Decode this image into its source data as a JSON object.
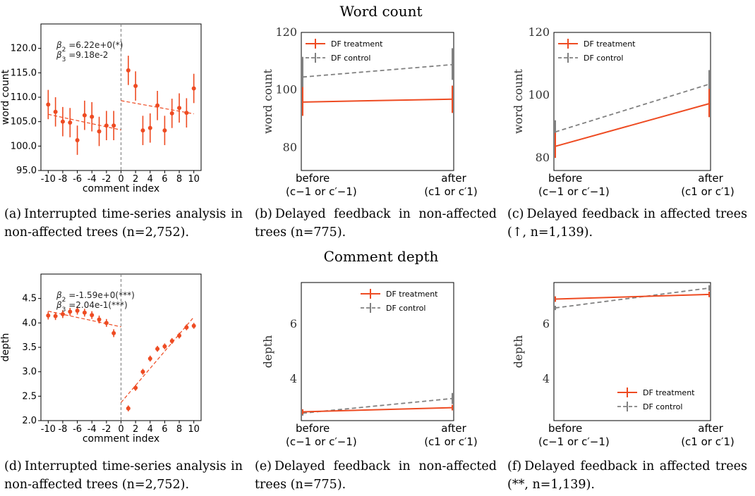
{
  "row_titles": {
    "top": "Word count",
    "bottom": "Comment depth"
  },
  "colors": {
    "treatment": "#ee4b22",
    "control": "#808080",
    "cutoff": "#888888"
  },
  "captions": [
    {
      "label": "(a)",
      "text": "Interrupted time-series analysis in non-affected trees (n=2,752)."
    },
    {
      "label": "(b)",
      "text": "Delayed feedback in non-affected trees (n=775)."
    },
    {
      "label": "(c)",
      "text": "Delayed feedback in affected trees (↑, n=1,139)."
    },
    {
      "label": "(d)",
      "text": "Interrupted time-series analysis in non-affected trees (n=2,752)."
    },
    {
      "label": "(e)",
      "text": "Delayed feedback in non-affected trees (n=775)."
    },
    {
      "label": "(f)",
      "text": "Delayed feedback in affected trees (**, n=1,139)."
    }
  ],
  "chart_data": [
    {
      "id": "a",
      "type": "scatter",
      "xlabel": "comment index",
      "ylabel": "word count",
      "xlim": [
        -11,
        11
      ],
      "ylim": [
        95,
        125
      ],
      "xticks": [
        -10,
        -8,
        -6,
        -4,
        -2,
        0,
        2,
        4,
        6,
        8,
        10
      ],
      "xtick_labels": [
        "-10",
        "-8",
        "-6",
        "-4",
        "-2",
        "0",
        "2",
        "4",
        "6",
        "8",
        "10"
      ],
      "yticks": [
        95,
        100,
        105,
        110,
        115,
        120
      ],
      "ytick_labels": [
        "95.0",
        "100.0",
        "105.0",
        "110.0",
        "115.0",
        "120.0"
      ],
      "annotations": [
        "β2 =6.22e+0(*)",
        "β3 =9.18e-2"
      ],
      "points": [
        {
          "x": -10,
          "y": 108.5,
          "lo": 105.5,
          "hi": 111.5
        },
        {
          "x": -9,
          "y": 107.0,
          "lo": 104.0,
          "hi": 110.0
        },
        {
          "x": -8,
          "y": 105.0,
          "lo": 102.0,
          "hi": 108.0
        },
        {
          "x": -7,
          "y": 104.8,
          "lo": 101.8,
          "hi": 107.8
        },
        {
          "x": -6,
          "y": 101.2,
          "lo": 98.2,
          "hi": 104.2
        },
        {
          "x": -5,
          "y": 106.3,
          "lo": 103.3,
          "hi": 109.3
        },
        {
          "x": -4,
          "y": 106.0,
          "lo": 103.0,
          "hi": 109.0
        },
        {
          "x": -3,
          "y": 103.0,
          "lo": 100.0,
          "hi": 106.0
        },
        {
          "x": -2,
          "y": 104.2,
          "lo": 101.2,
          "hi": 107.2
        },
        {
          "x": -1,
          "y": 104.2,
          "lo": 101.2,
          "hi": 107.2
        },
        {
          "x": 1,
          "y": 115.5,
          "lo": 112.5,
          "hi": 118.5
        },
        {
          "x": 2,
          "y": 112.3,
          "lo": 109.3,
          "hi": 115.3
        },
        {
          "x": 3,
          "y": 103.2,
          "lo": 100.2,
          "hi": 106.2
        },
        {
          "x": 4,
          "y": 103.7,
          "lo": 100.7,
          "hi": 106.7
        },
        {
          "x": 5,
          "y": 108.3,
          "lo": 105.3,
          "hi": 111.3
        },
        {
          "x": 6,
          "y": 103.2,
          "lo": 100.2,
          "hi": 106.2
        },
        {
          "x": 7,
          "y": 106.7,
          "lo": 103.7,
          "hi": 109.7
        },
        {
          "x": 8,
          "y": 107.8,
          "lo": 104.8,
          "hi": 110.8
        },
        {
          "x": 9,
          "y": 106.8,
          "lo": 103.8,
          "hi": 109.8
        },
        {
          "x": 10,
          "y": 111.8,
          "lo": 108.8,
          "hi": 114.8
        }
      ],
      "fits": [
        {
          "x": [
            -10,
            0
          ],
          "y": [
            106.5,
            103.3
          ]
        },
        {
          "x": [
            0,
            10
          ],
          "y": [
            109.3,
            106.6
          ]
        }
      ]
    },
    {
      "id": "b",
      "type": "line",
      "ylabel": "word count",
      "ylim": [
        72,
        120
      ],
      "yticks": [
        80,
        100,
        120
      ],
      "ytick_labels": [
        "80",
        "100",
        "120"
      ],
      "categories": [
        "before",
        "after"
      ],
      "category_sub": [
        "(c−1 or c′−1)",
        "(c1 or c′1)"
      ],
      "legend_position": "upper-left",
      "series": [
        {
          "name": "DF treatment",
          "style": "solid",
          "values": [
            95.8,
            96.8
          ],
          "err": [
            [
              91,
              101
            ],
            [
              92,
              101.5
            ]
          ]
        },
        {
          "name": "DF control",
          "style": "dashed",
          "values": [
            104.5,
            108.8
          ],
          "err": [
            [
              97.5,
              111.5
            ],
            [
              103.5,
              114.5
            ]
          ]
        }
      ]
    },
    {
      "id": "c",
      "type": "line",
      "ylabel": "word count",
      "ylim": [
        76,
        120
      ],
      "yticks": [
        80,
        100,
        120
      ],
      "ytick_labels": [
        "80",
        "100",
        "120"
      ],
      "categories": [
        "before",
        "after"
      ],
      "category_sub": [
        "(c−1 or c′−1)",
        "(c1 or c′1)"
      ],
      "legend_position": "upper-left",
      "series": [
        {
          "name": "DF treatment",
          "style": "solid",
          "values": [
            83.7,
            97.3
          ],
          "err": [
            [
              80,
              88
            ],
            [
              93,
              102
            ]
          ]
        },
        {
          "name": "DF control",
          "style": "dashed",
          "values": [
            88.3,
            103.5
          ],
          "err": [
            [
              84,
              92
            ],
            [
              99,
              108
            ]
          ]
        }
      ]
    },
    {
      "id": "d",
      "type": "scatter",
      "xlabel": "comment index",
      "ylabel": "depth",
      "xlim": [
        -11,
        11
      ],
      "ylim": [
        2.0,
        5.0
      ],
      "xticks": [
        -10,
        -8,
        -6,
        -4,
        -2,
        0,
        2,
        4,
        6,
        8,
        10
      ],
      "xtick_labels": [
        "-10",
        "-8",
        "-6",
        "-4",
        "-2",
        "0",
        "2",
        "4",
        "6",
        "8",
        "10"
      ],
      "yticks": [
        2.0,
        2.5,
        3.0,
        3.5,
        4.0,
        4.5
      ],
      "ytick_labels": [
        "2.0",
        "2.5",
        "3.0",
        "3.5",
        "4.0",
        "4.5"
      ],
      "annotations": [
        "β2 =-1.59e+0(***)",
        "β3 =2.04e-1(***)"
      ],
      "points": [
        {
          "x": -10,
          "y": 4.15,
          "lo": 4.07,
          "hi": 4.23
        },
        {
          "x": -9,
          "y": 4.14,
          "lo": 4.06,
          "hi": 4.22
        },
        {
          "x": -8,
          "y": 4.18,
          "lo": 4.1,
          "hi": 4.26
        },
        {
          "x": -7,
          "y": 4.23,
          "lo": 4.15,
          "hi": 4.31
        },
        {
          "x": -6,
          "y": 4.25,
          "lo": 4.17,
          "hi": 4.33
        },
        {
          "x": -5,
          "y": 4.21,
          "lo": 4.13,
          "hi": 4.29
        },
        {
          "x": -4,
          "y": 4.16,
          "lo": 4.08,
          "hi": 4.24
        },
        {
          "x": -3,
          "y": 4.07,
          "lo": 3.99,
          "hi": 4.15
        },
        {
          "x": -2,
          "y": 4.0,
          "lo": 3.92,
          "hi": 4.08
        },
        {
          "x": -1,
          "y": 3.79,
          "lo": 3.71,
          "hi": 3.87
        },
        {
          "x": 1,
          "y": 2.25,
          "lo": 2.19,
          "hi": 2.31
        },
        {
          "x": 2,
          "y": 2.67,
          "lo": 2.61,
          "hi": 2.73
        },
        {
          "x": 3,
          "y": 3.0,
          "lo": 2.94,
          "hi": 3.06
        },
        {
          "x": 4,
          "y": 3.27,
          "lo": 3.21,
          "hi": 3.33
        },
        {
          "x": 5,
          "y": 3.47,
          "lo": 3.41,
          "hi": 3.53
        },
        {
          "x": 6,
          "y": 3.52,
          "lo": 3.46,
          "hi": 3.58
        },
        {
          "x": 7,
          "y": 3.63,
          "lo": 3.57,
          "hi": 3.69
        },
        {
          "x": 8,
          "y": 3.74,
          "lo": 3.68,
          "hi": 3.8
        },
        {
          "x": 9,
          "y": 3.91,
          "lo": 3.85,
          "hi": 3.97
        },
        {
          "x": 10,
          "y": 3.94,
          "lo": 3.88,
          "hi": 4.0
        }
      ],
      "fits": [
        {
          "x": [
            -10,
            0
          ],
          "y": [
            4.24,
            3.92
          ]
        },
        {
          "x": [
            0,
            10
          ],
          "y": [
            2.37,
            4.12
          ]
        }
      ]
    },
    {
      "id": "e",
      "type": "line",
      "ylabel": "depth",
      "ylim": [
        2.5,
        7.5
      ],
      "yticks": [
        4,
        6
      ],
      "ytick_labels": [
        "4",
        "6"
      ],
      "categories": [
        "before",
        "after"
      ],
      "category_sub": [
        "(c−1 or c′−1)",
        "(c1 or c′1)"
      ],
      "legend_position": "upper-right",
      "series": [
        {
          "name": "DF treatment",
          "style": "solid",
          "values": [
            2.82,
            2.97
          ],
          "err": [
            [
              2.73,
              2.91
            ],
            [
              2.87,
              3.07
            ]
          ]
        },
        {
          "name": "DF control",
          "style": "dashed",
          "values": [
            2.77,
            3.3
          ],
          "err": [
            [
              2.68,
              2.86
            ],
            [
              3.1,
              3.5
            ]
          ]
        }
      ]
    },
    {
      "id": "f",
      "type": "line",
      "ylabel": "depth",
      "ylim": [
        2.5,
        7.5
      ],
      "yticks": [
        4,
        6
      ],
      "ytick_labels": [
        "4",
        "6"
      ],
      "categories": [
        "before",
        "after"
      ],
      "category_sub": [
        "(c−1 or c′−1)",
        "(c1 or c′1)"
      ],
      "legend_position": "lower-right",
      "series": [
        {
          "name": "DF treatment",
          "style": "solid",
          "values": [
            6.9,
            7.07
          ],
          "err": [
            [
              6.8,
              7.0
            ],
            [
              6.97,
              7.17
            ]
          ]
        },
        {
          "name": "DF control",
          "style": "dashed",
          "values": [
            6.58,
            7.3
          ],
          "err": [
            [
              6.5,
              6.66
            ],
            [
              7.2,
              7.4
            ]
          ]
        }
      ]
    }
  ]
}
